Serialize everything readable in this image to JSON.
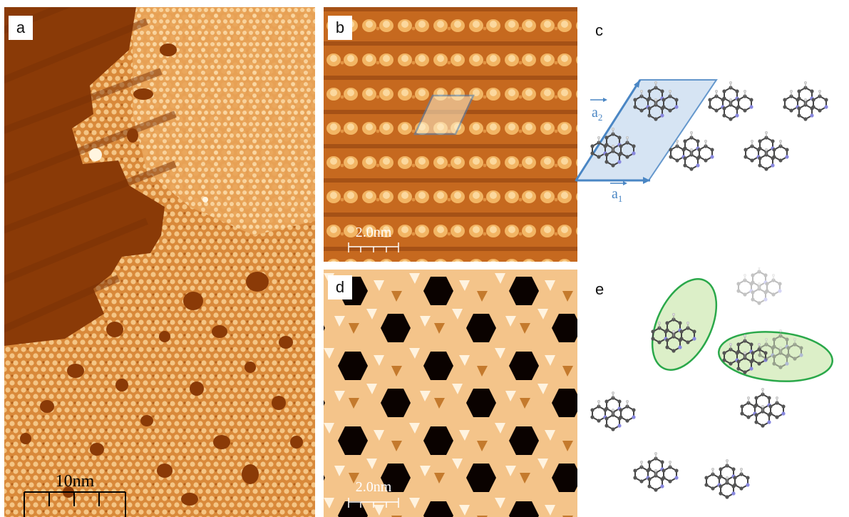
{
  "panels": {
    "a": {
      "label": "a",
      "scalebar": "10nm"
    },
    "b": {
      "label": "b",
      "scalebar": "2.0nm"
    },
    "c": {
      "label": "c",
      "vector_a1": "a",
      "vector_a1_sub": "1",
      "vector_a2": "a",
      "vector_a2_sub": "2"
    },
    "d": {
      "label": "d",
      "scalebar": "2.0nm"
    },
    "e": {
      "label": "e"
    }
  },
  "colors": {
    "stm_dark": "#7a2c00",
    "stm_mid": "#d07a2a",
    "stm_light": "#f6c98a",
    "stm_bright": "#fff2d8",
    "unit_cell": "#4a86c4",
    "unit_cell_fill": "#cfe0f2",
    "dimer_outline": "#2aa84a",
    "dimer_fill": "#dcefc8",
    "carbon": "#4a4a4a",
    "nitrogen": "#8080e0",
    "hydrogen": "#e6e6e6"
  }
}
